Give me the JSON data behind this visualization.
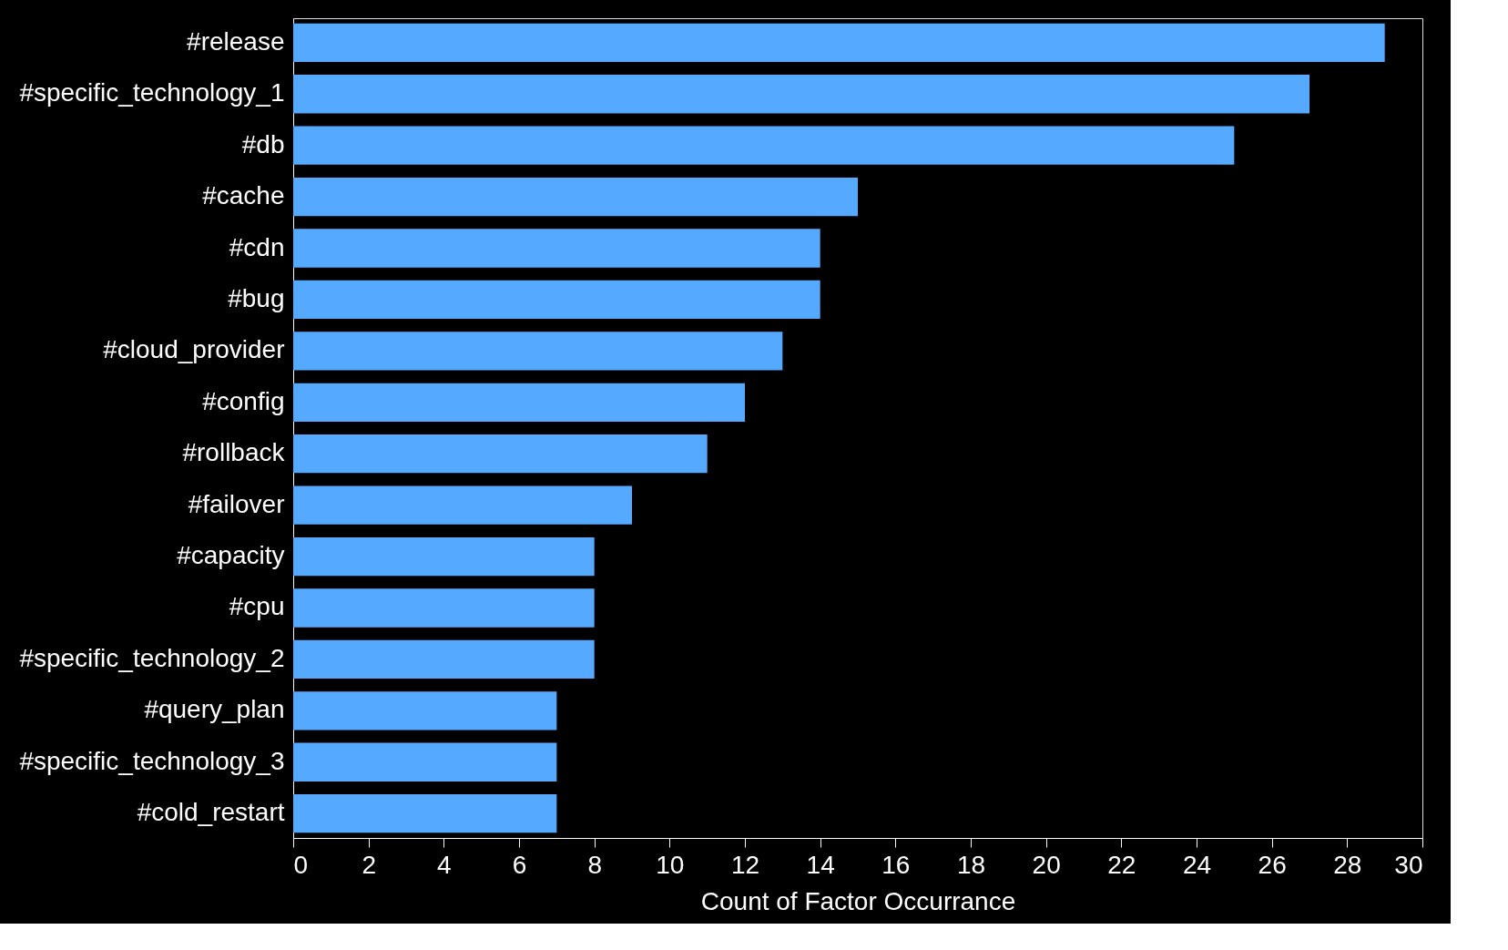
{
  "chart_data": {
    "type": "bar",
    "orientation": "horizontal",
    "xlabel": "Count of Factor Occurrance",
    "categories": [
      "#release",
      "#specific_technology_1",
      "#db",
      "#cache",
      "#cdn",
      "#bug",
      "#cloud_provider",
      "#config",
      "#rollback",
      "#failover",
      "#capacity",
      "#cpu",
      "#specific_technology_2",
      "#query_plan",
      "#specific_technology_3",
      "#cold_restart"
    ],
    "values": [
      29,
      27,
      25,
      15,
      14,
      14,
      13,
      12,
      11,
      9,
      8,
      8,
      8,
      7,
      7,
      7
    ],
    "color": "#55aaff",
    "xlim": [
      0,
      30
    ],
    "xticks": [
      0,
      2,
      4,
      6,
      8,
      10,
      12,
      14,
      16,
      18,
      20,
      22,
      24,
      26,
      28,
      30
    ],
    "grid": false
  }
}
